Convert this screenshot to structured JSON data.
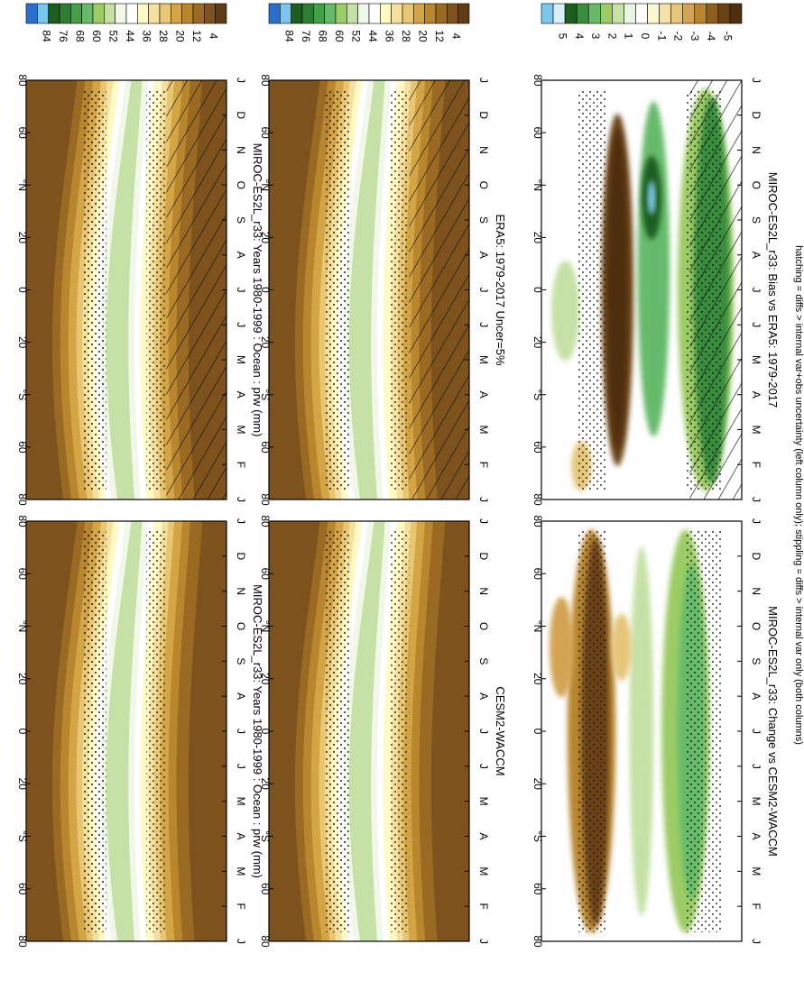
{
  "figure": {
    "footnote": "hatching = diffs > internal var+obs uncertainty (left column only); stippling = diffs > internal var only (both columns)"
  },
  "colorbar_colors": {
    "abs": [
      "#2a6fce",
      "#7bc6ec",
      "#1b5e20",
      "#2e7d32",
      "#43a047",
      "#66bb6a",
      "#9ccc65",
      "#c5e1a5",
      "#f1f8e9",
      "#ffffff",
      "#fff9c4",
      "#f5e0a0",
      "#e8c672",
      "#d4a545",
      "#b8862d",
      "#9a6a22",
      "#7d521c",
      "#5f3c14"
    ],
    "diff": [
      "#7bc6ec",
      "#d6eef8",
      "#1b5e20",
      "#388e3c",
      "#66bb6a",
      "#9ccc65",
      "#c5e1a5",
      "#e8f5e0",
      "#ffffff",
      "#fdf6d3",
      "#f3e1a6",
      "#e5c67a",
      "#d3a453",
      "#b8862d",
      "#8d5e1d",
      "#6b4212",
      "#4e2f0b"
    ]
  },
  "chart_data": [
    {
      "type": "heatmap",
      "panel": "top-left",
      "title": "MIROC-ES2L_r33: Years 1980-1999 : Ocean : prw (mm)",
      "x_ticks": [
        "J",
        "F",
        "M",
        "A",
        "M",
        "J",
        "J",
        "A",
        "S",
        "O",
        "N",
        "D",
        "J"
      ],
      "y_ticks": [
        "80",
        "60",
        "°N",
        "20",
        "0",
        "20",
        "°S",
        "60",
        "80"
      ],
      "colorbar_labels": [
        "84",
        "76",
        "68",
        "60",
        "52",
        "44",
        "36",
        "28",
        "20",
        "12",
        "4"
      ],
      "zlim": [
        0,
        88
      ],
      "hatching": true,
      "stippling": true
    },
    {
      "type": "heatmap",
      "panel": "top-right",
      "title": "MIROC-ES2L_r33: Years 1980-1999 : Ocean : prw (mm)",
      "x_ticks": [
        "J",
        "F",
        "M",
        "A",
        "M",
        "J",
        "J",
        "A",
        "S",
        "O",
        "N",
        "D",
        "J"
      ],
      "y_ticks": [
        "80",
        "60",
        "°N",
        "20",
        "0",
        "20",
        "°S",
        "60",
        "80"
      ],
      "colorbar_labels": [
        "84",
        "76",
        "68",
        "60",
        "52",
        "44",
        "36",
        "28",
        "20",
        "12",
        "4"
      ],
      "zlim": [
        0,
        88
      ],
      "hatching": false,
      "stippling": true
    },
    {
      "type": "heatmap",
      "panel": "middle-left",
      "title": "ERA5: 1979-2017 Uncer=5%",
      "x_ticks": [
        "J",
        "F",
        "M",
        "A",
        "M",
        "J",
        "J",
        "A",
        "S",
        "O",
        "N",
        "D",
        "J"
      ],
      "y_ticks": [
        "80",
        "60",
        "°N",
        "20",
        "0",
        "20",
        "°S",
        "60",
        "80"
      ],
      "colorbar_labels": [
        "84",
        "76",
        "68",
        "60",
        "52",
        "44",
        "36",
        "28",
        "20",
        "12",
        "4"
      ],
      "zlim": [
        0,
        88
      ],
      "hatching": true,
      "stippling": true
    },
    {
      "type": "heatmap",
      "panel": "middle-right",
      "title": "CESM2-WACCM",
      "x_ticks": [
        "J",
        "F",
        "M",
        "A",
        "M",
        "J",
        "J",
        "A",
        "S",
        "O",
        "N",
        "D",
        "J"
      ],
      "y_ticks": [
        "80",
        "60",
        "°N",
        "20",
        "0",
        "20",
        "°S",
        "60",
        "80"
      ],
      "colorbar_labels": [
        "84",
        "76",
        "68",
        "60",
        "52",
        "44",
        "36",
        "28",
        "20",
        "12",
        "4"
      ],
      "zlim": [
        0,
        88
      ],
      "hatching": false,
      "stippling": true
    },
    {
      "type": "heatmap",
      "panel": "bottom-left",
      "title": "MIROC-ES2L_r33: Bias vs ERA5: 1979-2017",
      "x_ticks": [
        "J",
        "F",
        "M",
        "A",
        "M",
        "J",
        "J",
        "A",
        "S",
        "O",
        "N",
        "D",
        "J"
      ],
      "y_ticks": [
        "80",
        "60",
        "°N",
        "20",
        "0",
        "20",
        "°S",
        "60",
        "80"
      ],
      "colorbar_labels": [
        "5",
        "4",
        "3",
        "2",
        "1",
        "0",
        "-1",
        "-2",
        "-3",
        "-4",
        "-5"
      ],
      "zlim": [
        -6,
        6
      ],
      "hatching": true,
      "stippling": true
    },
    {
      "type": "heatmap",
      "panel": "bottom-right",
      "title": "MIROC-ES2L_r33: Change vs CESM2-WACCM",
      "x_ticks": [
        "J",
        "F",
        "M",
        "A",
        "M",
        "J",
        "J",
        "A",
        "S",
        "O",
        "N",
        "D",
        "J"
      ],
      "y_ticks": [
        "80",
        "60",
        "°N",
        "20",
        "0",
        "20",
        "°S",
        "60",
        "80"
      ],
      "colorbar_labels": [
        "5",
        "4",
        "3",
        "2",
        "1",
        "0",
        "-1",
        "-2",
        "-3",
        "-4",
        "-5"
      ],
      "zlim": [
        -6,
        6
      ],
      "hatching": false,
      "stippling": true
    }
  ]
}
